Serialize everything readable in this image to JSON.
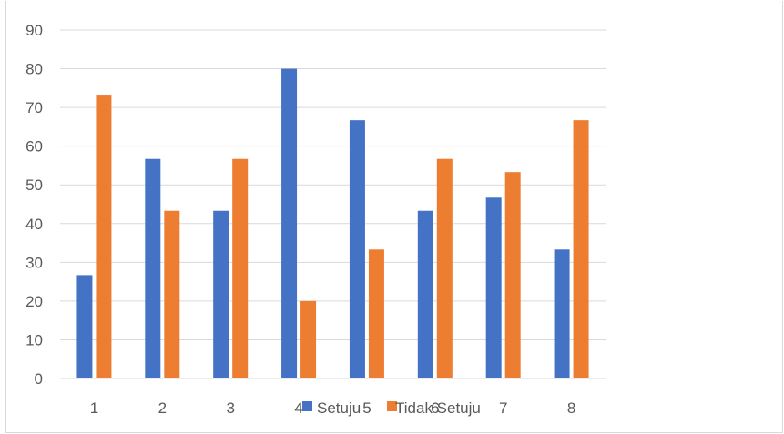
{
  "chart_data": {
    "type": "bar",
    "categories": [
      "1",
      "2",
      "3",
      "4",
      "5",
      "6",
      "7",
      "8"
    ],
    "series": [
      {
        "name": "Setuju",
        "color": "#4472C4",
        "values": [
          26.7,
          56.7,
          43.3,
          80,
          66.7,
          43.3,
          46.7,
          33.3
        ]
      },
      {
        "name": "Tidak Setuju",
        "color": "#ED7D31",
        "values": [
          73.3,
          43.3,
          56.7,
          20,
          33.3,
          56.7,
          53.3,
          66.7
        ]
      }
    ],
    "ylim": [
      0,
      90
    ],
    "yticks": [
      "0",
      "10",
      "20",
      "30",
      "40",
      "50",
      "60",
      "70",
      "80",
      "90"
    ],
    "grid": true,
    "legend": "bottom"
  }
}
